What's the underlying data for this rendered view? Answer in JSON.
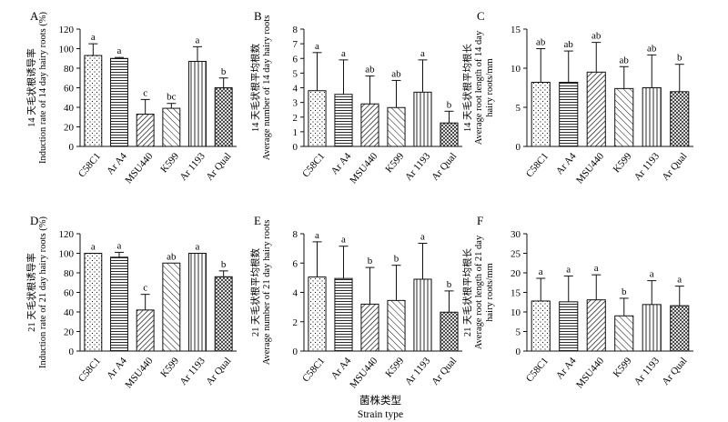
{
  "x_label_zh": "菌株类型",
  "x_label_en": "Strain type",
  "colors": {
    "ink": "#111111",
    "paper": "#ffffff"
  },
  "pattern_names": [
    "dots",
    "hlines",
    "diag",
    "diag-fine",
    "vlines",
    "cross"
  ],
  "chart_data": [
    {
      "type": "bar",
      "panel": "A",
      "categories": [
        "C58C1",
        "Ar A4",
        "MSU440",
        "K599",
        "Ar 1193",
        "Ar Qual"
      ],
      "values": [
        93,
        90,
        33,
        39,
        87,
        60
      ],
      "errors": [
        12,
        1,
        15,
        5,
        15,
        10
      ],
      "significance": [
        "a",
        "a",
        "c",
        "bc",
        "a",
        "b"
      ],
      "ylim": [
        0,
        120
      ],
      "yticks": [
        0,
        20,
        40,
        60,
        80,
        100,
        120
      ],
      "ylabel_zh": "14 天毛状根诱导率",
      "ylabel_en": [
        "Induction rate of 14 day hairy roots (%)"
      ]
    },
    {
      "type": "bar",
      "panel": "B",
      "categories": [
        "C58C1",
        "Ar A4",
        "MSU440",
        "K599",
        "Ar 1193",
        "Ar Qual"
      ],
      "values": [
        3.8,
        3.55,
        2.9,
        2.65,
        3.7,
        1.6
      ],
      "errors": [
        2.6,
        2.35,
        1.9,
        1.85,
        2.2,
        0.8
      ],
      "significance": [
        "a",
        "a",
        "ab",
        "ab",
        "a",
        "b"
      ],
      "ylim": [
        0,
        8
      ],
      "yticks": [
        0,
        1,
        2,
        3,
        4,
        5,
        6,
        7,
        8
      ],
      "ylabel_zh": "14 天毛状根平均根数",
      "ylabel_en": [
        "Average number of 14 day hairy roots"
      ]
    },
    {
      "type": "bar",
      "panel": "C",
      "categories": [
        "C58C1",
        "Ar A4",
        "MSU440",
        "K599",
        "Ar 1193",
        "Ar Qual"
      ],
      "values": [
        8.2,
        8.2,
        9.5,
        7.4,
        7.5,
        7.0
      ],
      "errors": [
        4.3,
        4.0,
        3.8,
        2.8,
        4.2,
        3.5
      ],
      "significance": [
        "ab",
        "ab",
        "ab",
        "ab",
        "ab",
        "b"
      ],
      "ylim": [
        0,
        15
      ],
      "yticks": [
        0,
        5,
        10,
        15
      ],
      "ylabel_zh": "14 天毛状根平均根长",
      "ylabel_en": [
        "Average root length of 14 day",
        "hairy roots/mm"
      ]
    },
    {
      "type": "bar",
      "panel": "D",
      "categories": [
        "C58C1",
        "Ar A4",
        "MSU440",
        "K599",
        "Ar 1193",
        "Ar Qual"
      ],
      "values": [
        100,
        96,
        42,
        90,
        100,
        76
      ],
      "errors": [
        0,
        5,
        16,
        0,
        0,
        6
      ],
      "significance": [
        "a",
        "a",
        "c",
        "ab",
        "a",
        "b"
      ],
      "ylim": [
        0,
        120
      ],
      "yticks": [
        0,
        20,
        40,
        60,
        80,
        100,
        120
      ],
      "ylabel_zh": "21 天毛状根诱导率",
      "ylabel_en": [
        "Induction rate of 21 day hairy roots (%)"
      ]
    },
    {
      "type": "bar",
      "panel": "E",
      "categories": [
        "C58C1",
        "Ar A4",
        "MSU440",
        "K599",
        "Ar 1193",
        "Ar Qual"
      ],
      "values": [
        5.05,
        4.95,
        3.2,
        3.45,
        4.9,
        2.65
      ],
      "errors": [
        2.4,
        2.2,
        2.5,
        2.4,
        2.45,
        1.45
      ],
      "significance": [
        "a",
        "a",
        "b",
        "b",
        "a",
        "b"
      ],
      "ylim": [
        0,
        8
      ],
      "yticks": [
        0,
        2,
        4,
        6,
        8
      ],
      "ylabel_zh": "21 天毛状根平均根数",
      "ylabel_en": [
        "Average number of 21 day hairy roots"
      ]
    },
    {
      "type": "bar",
      "panel": "F",
      "categories": [
        "C58C1",
        "Ar A4",
        "MSU440",
        "K599",
        "Ar 1193",
        "Ar Qual"
      ],
      "values": [
        12.8,
        12.6,
        13.1,
        9.0,
        11.9,
        11.6
      ],
      "errors": [
        5.8,
        6.6,
        6.4,
        4.5,
        6.1,
        5.0
      ],
      "significance": [
        "a",
        "a",
        "a",
        "b",
        "a",
        "a"
      ],
      "ylim": [
        0,
        30
      ],
      "yticks": [
        0,
        5,
        10,
        15,
        20,
        25,
        30
      ],
      "ylabel_zh": "21 天毛状根平均根长",
      "ylabel_en": [
        "Average root length of 21 day",
        "hairy roots/mm"
      ]
    }
  ]
}
